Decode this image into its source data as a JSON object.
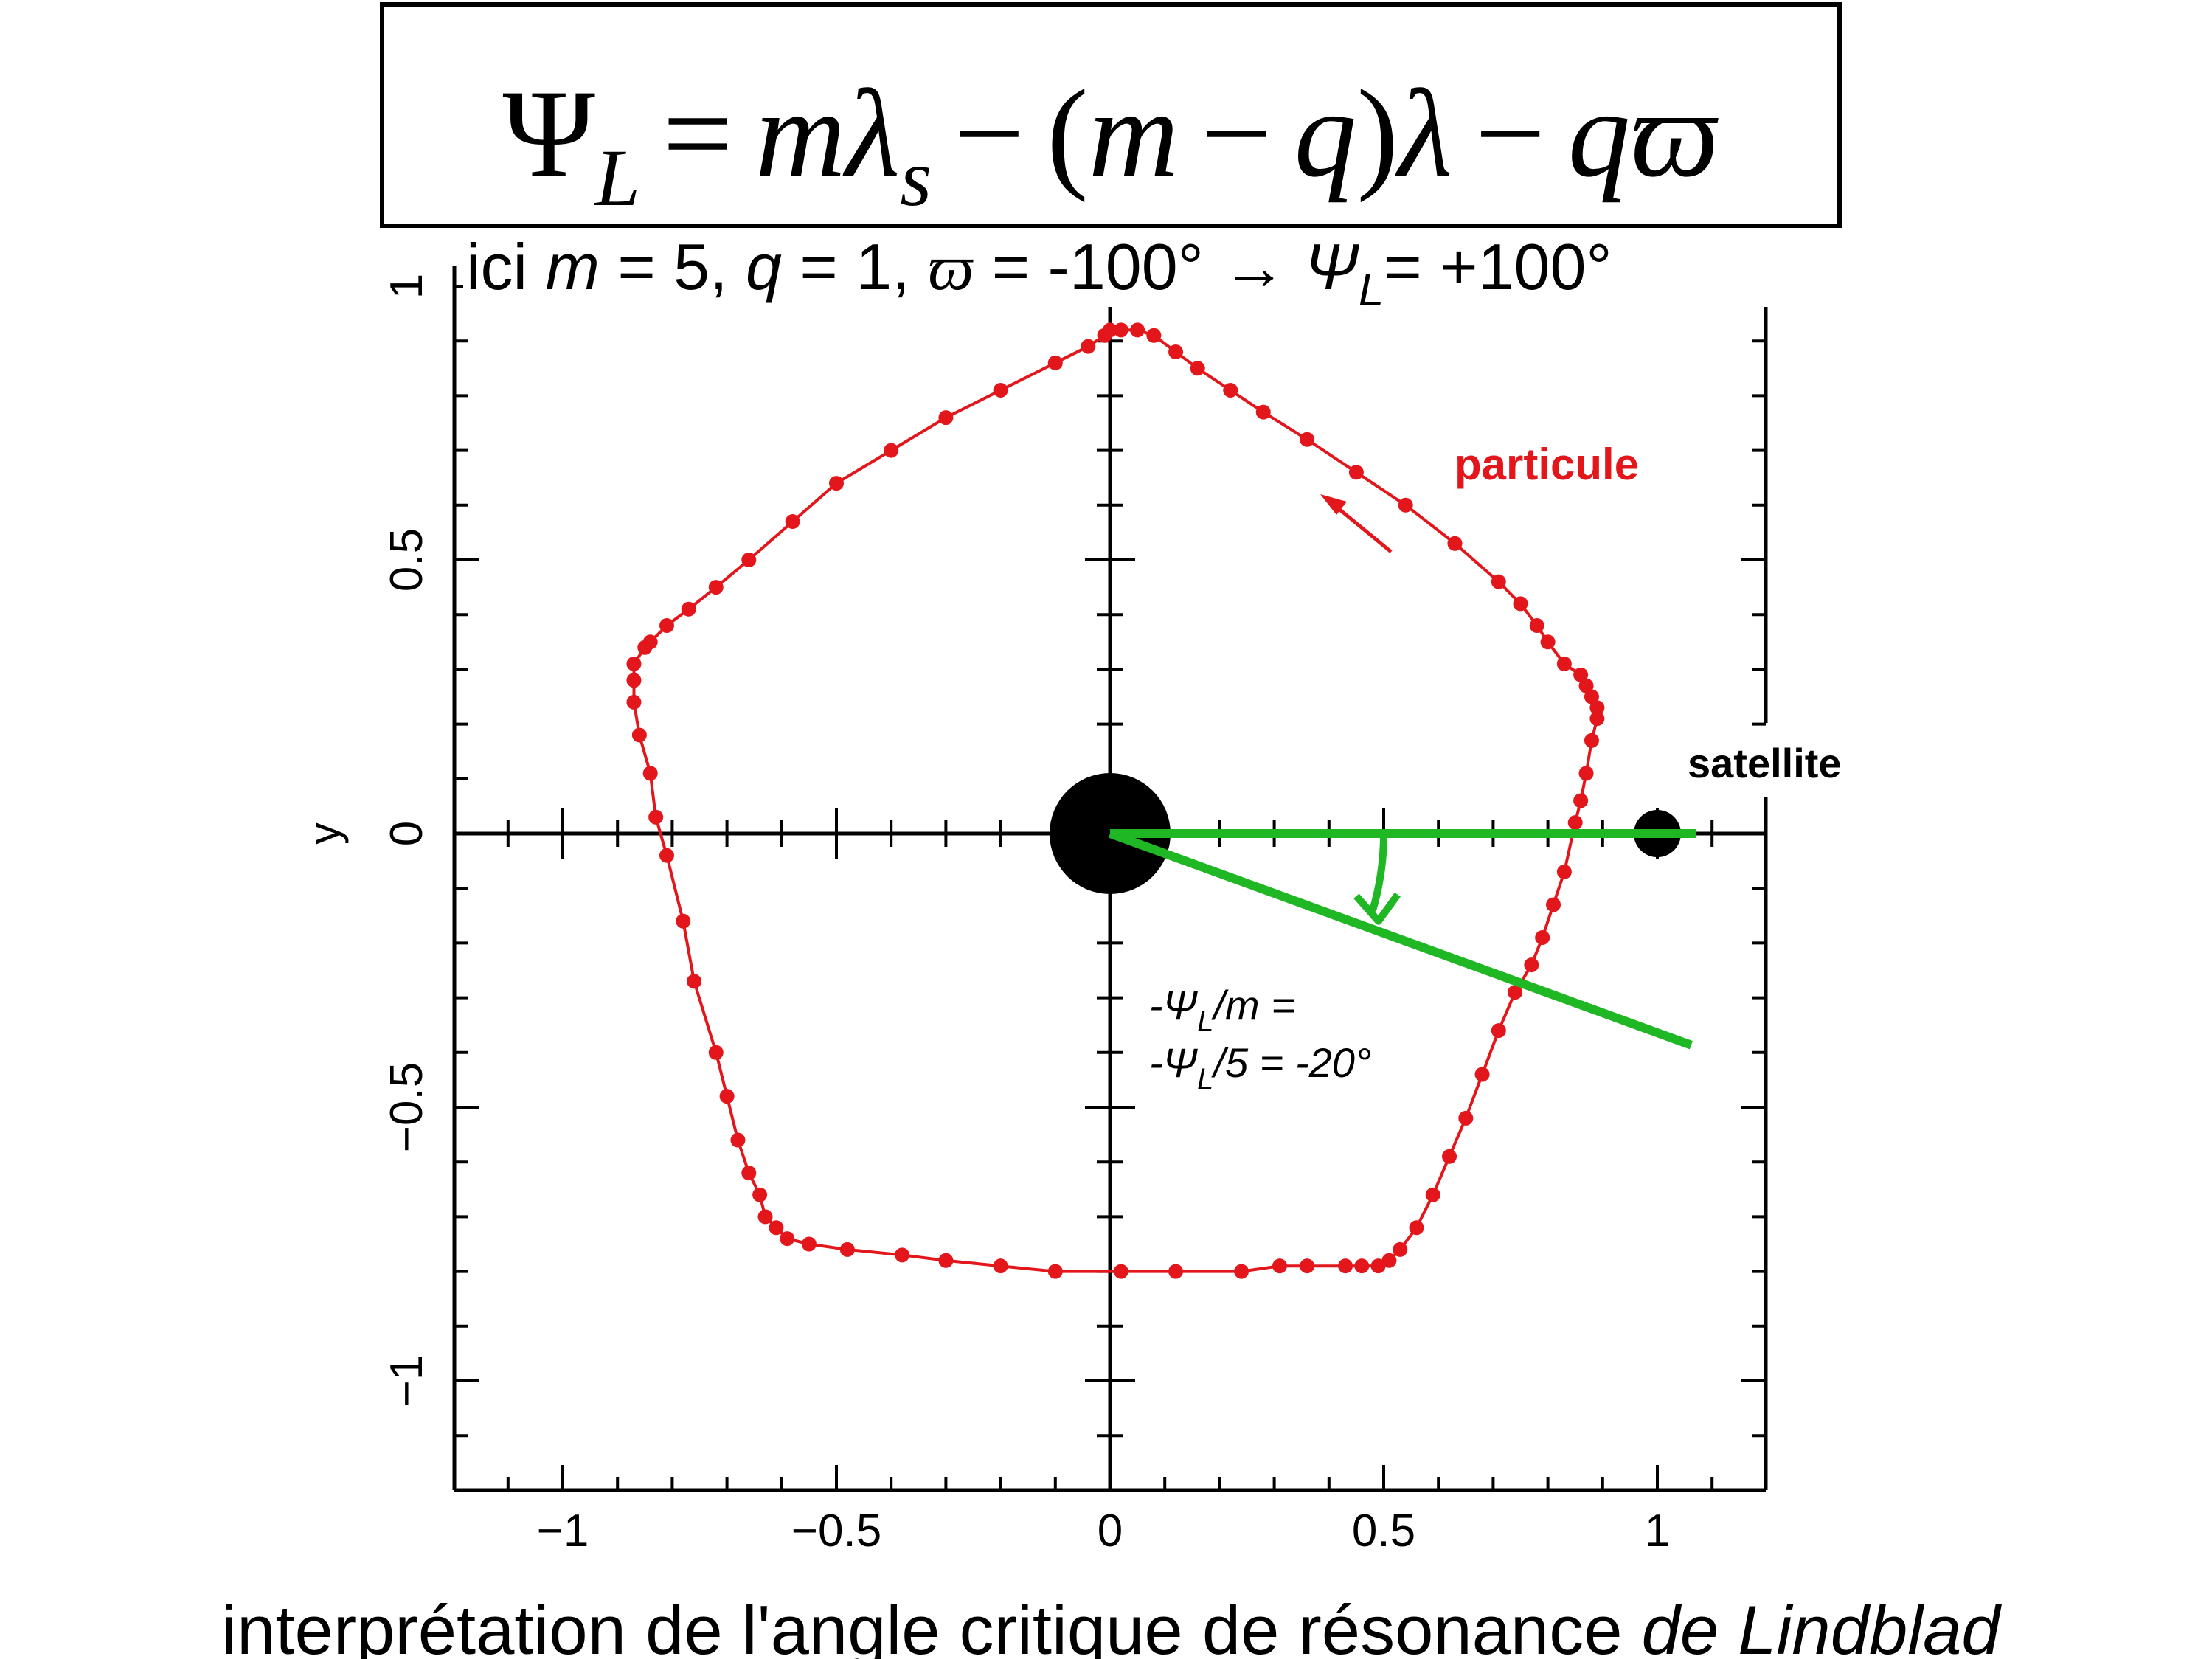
{
  "formula": {
    "lhs": "Ψ",
    "lhs_sub": "L",
    "equals": "=",
    "t1": "m",
    "t2": "λ",
    "t2_sub": "s",
    "minus": "−",
    "paren_open": "(",
    "t3": "m",
    "minus2": "−",
    "t4": "q",
    "paren_close": ")",
    "t5": "λ",
    "minus3": "−",
    "t6": "q",
    "t7": "ϖ"
  },
  "params": {
    "ici": "ici ",
    "m": "m",
    "eq1": " = 5, ",
    "q": "q",
    "eq2": " = 1, ",
    "varpi": "ϖ",
    "eq3": " = -100° → ",
    "psi": "Ψ",
    "sub": "L",
    "eq4": "= +100°"
  },
  "angle_note": {
    "line1_a": "-Ψ",
    "line1_sub": "L",
    "line1_b": "/m =",
    "line2_a": "-Ψ",
    "line2_sub": "L",
    "line2_b": "/5 = -20°"
  },
  "caption": {
    "normal": "interprétation de l'angle critique de résonance ",
    "italic": "de Lindblad"
  },
  "colors": {
    "orbit": "#e3161b",
    "angle": "#1fb824",
    "axes": "#000000"
  },
  "chart_data": {
    "type": "scatter",
    "xlabel": "",
    "ylabel": "y",
    "xlim": [
      -1.2,
      1.2
    ],
    "ylim": [
      -1.2,
      1.02
    ],
    "xticks": [
      -1,
      -0.5,
      0,
      0.5,
      1
    ],
    "yticks": [
      -1,
      -0.5,
      0,
      0.5,
      1
    ],
    "xtick_labels": [
      "−1",
      "−0.5",
      "0",
      "0.5",
      "1"
    ],
    "ytick_labels": [
      "−1",
      "−0.5",
      "0",
      "0.5",
      "1"
    ],
    "minor_step": 0.1,
    "series": [
      {
        "name": "particule",
        "points": [
          [
            0.02,
            0.92
          ],
          [
            0.05,
            0.92
          ],
          [
            0.08,
            0.91
          ],
          [
            0.12,
            0.88
          ],
          [
            0.16,
            0.85
          ],
          [
            0.22,
            0.81
          ],
          [
            0.28,
            0.77
          ],
          [
            0.36,
            0.72
          ],
          [
            0.45,
            0.66
          ],
          [
            0.54,
            0.6
          ],
          [
            0.63,
            0.53
          ],
          [
            0.71,
            0.46
          ],
          [
            0.75,
            0.42
          ],
          [
            0.78,
            0.38
          ],
          [
            0.8,
            0.35
          ],
          [
            0.83,
            0.31
          ],
          [
            0.86,
            0.29
          ],
          [
            0.87,
            0.27
          ],
          [
            0.88,
            0.25
          ],
          [
            0.89,
            0.23
          ],
          [
            0.89,
            0.21
          ],
          [
            0.88,
            0.17
          ],
          [
            0.87,
            0.11
          ],
          [
            0.86,
            0.06
          ],
          [
            0.85,
            0.02
          ],
          [
            0.83,
            -0.07
          ],
          [
            0.81,
            -0.13
          ],
          [
            0.79,
            -0.19
          ],
          [
            0.77,
            -0.24
          ],
          [
            0.74,
            -0.29
          ],
          [
            0.71,
            -0.36
          ],
          [
            0.68,
            -0.44
          ],
          [
            0.65,
            -0.52
          ],
          [
            0.62,
            -0.59
          ],
          [
            0.59,
            -0.66
          ],
          [
            0.56,
            -0.72
          ],
          [
            0.53,
            -0.76
          ],
          [
            0.51,
            -0.78
          ],
          [
            0.49,
            -0.79
          ],
          [
            0.46,
            -0.79
          ],
          [
            0.43,
            -0.79
          ],
          [
            0.36,
            -0.79
          ],
          [
            0.31,
            -0.79
          ],
          [
            0.24,
            -0.8
          ],
          [
            0.12,
            -0.8
          ],
          [
            0.02,
            -0.8
          ],
          [
            -0.1,
            -0.8
          ],
          [
            -0.2,
            -0.79
          ],
          [
            -0.3,
            -0.78
          ],
          [
            -0.38,
            -0.77
          ],
          [
            -0.48,
            -0.76
          ],
          [
            -0.55,
            -0.75
          ],
          [
            -0.59,
            -0.74
          ],
          [
            -0.61,
            -0.72
          ],
          [
            -0.63,
            -0.7
          ],
          [
            -0.64,
            -0.66
          ],
          [
            -0.66,
            -0.62
          ],
          [
            -0.68,
            -0.56
          ],
          [
            -0.7,
            -0.48
          ],
          [
            -0.72,
            -0.4
          ],
          [
            -0.76,
            -0.27
          ],
          [
            -0.78,
            -0.16
          ],
          [
            -0.81,
            -0.04
          ],
          [
            -0.83,
            0.03
          ],
          [
            -0.84,
            0.11
          ],
          [
            -0.86,
            0.18
          ],
          [
            -0.87,
            0.24
          ],
          [
            -0.87,
            0.28
          ],
          [
            -0.87,
            0.31
          ],
          [
            -0.85,
            0.34
          ],
          [
            -0.84,
            0.35
          ],
          [
            -0.81,
            0.38
          ],
          [
            -0.77,
            0.41
          ],
          [
            -0.72,
            0.45
          ],
          [
            -0.66,
            0.5
          ],
          [
            -0.58,
            0.57
          ],
          [
            -0.5,
            0.64
          ],
          [
            -0.4,
            0.7
          ],
          [
            -0.3,
            0.76
          ],
          [
            -0.2,
            0.81
          ],
          [
            -0.1,
            0.86
          ],
          [
            -0.04,
            0.89
          ],
          [
            -0.01,
            0.91
          ],
          [
            0.0,
            0.92
          ]
        ]
      }
    ],
    "central_body": [
      0,
      0
    ],
    "satellite": [
      1.0,
      0
    ],
    "angle_ray_deg": -20,
    "annotations": [
      "particule",
      "satellite"
    ]
  }
}
